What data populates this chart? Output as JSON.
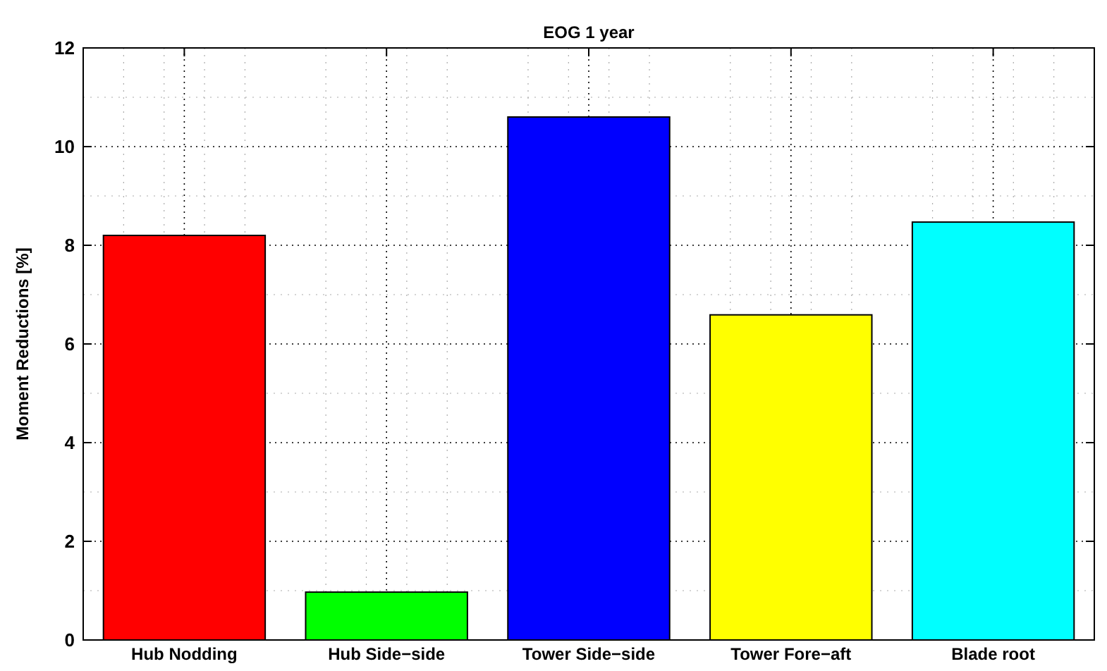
{
  "chart_data": {
    "type": "bar",
    "title": "EOG 1 year",
    "ylabel": "Moment Reductions [%]",
    "categories": [
      "Hub Nodding",
      "Hub Side−side",
      "Tower Side−side",
      "Tower Fore−aft",
      "Blade root"
    ],
    "values": [
      8.2,
      0.97,
      10.6,
      6.59,
      8.47
    ],
    "colors": [
      "#ff0000",
      "#00ff00",
      "#0000ff",
      "#ffff00",
      "#00ffff"
    ],
    "ylim": [
      0,
      12
    ],
    "yticks": [
      0,
      2,
      4,
      6,
      8,
      10,
      12
    ],
    "grid": true
  }
}
